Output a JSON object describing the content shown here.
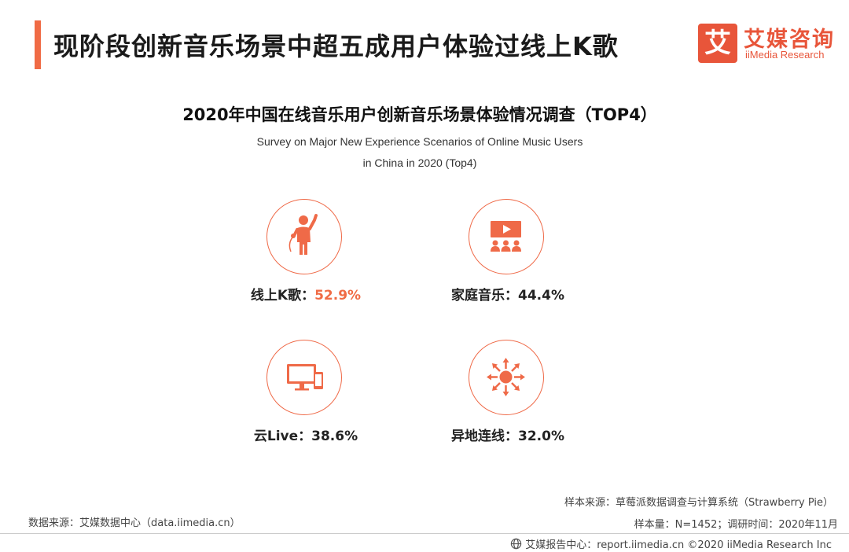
{
  "header": {
    "title": "现阶段创新音乐场景中超五成用户体验过线上K歌",
    "logo_mark": "艾",
    "logo_cn": "艾媒咨询",
    "logo_en": "iiMedia Research"
  },
  "chart_data": {
    "type": "table",
    "title": "2020年中国在线音乐用户创新音乐场景体验情况调查（TOP4）",
    "subtitle_line1": "Survey on Major New Experience Scenarios of Online Music Users",
    "subtitle_line2": "in China in 2020 (Top4)",
    "categories": [
      "线上K歌",
      "家庭音乐",
      "云Live",
      "异地连线"
    ],
    "values": [
      52.9,
      44.4,
      38.6,
      32.0
    ],
    "value_labels": [
      "52.9%",
      "44.4%",
      "38.6%",
      "32.0%"
    ],
    "separator": "：",
    "icons": [
      "karaoke-singer-icon",
      "home-theater-icon",
      "tv-and-phone-icon",
      "globe-network-icon"
    ],
    "accent_color": "#f06b45"
  },
  "footer": {
    "source": "数据来源：艾媒数据中心（data.iimedia.cn）",
    "sample": "样本来源：草莓派数据调查与计算系统（Strawberry Pie）",
    "sample_size": "样本量：N=1452；调研时间：2020年11月",
    "report": "艾媒报告中心：report.iimedia.cn ©2020  iiMedia Research  Inc"
  }
}
